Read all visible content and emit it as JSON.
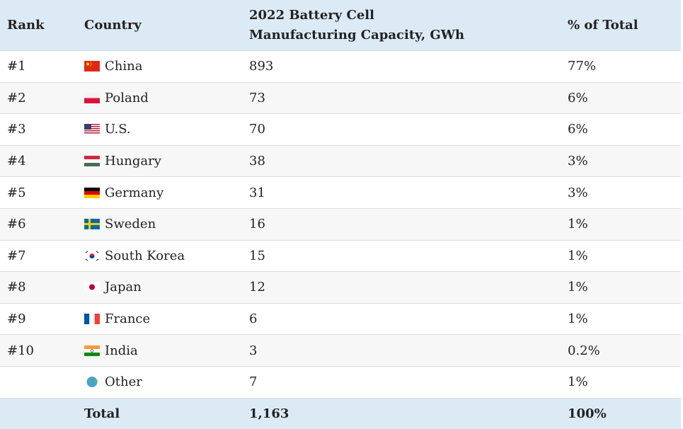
{
  "table": {
    "header": [
      "Rank",
      "Country",
      "2022 Battery Cell Manufacturing Capacity, GWh",
      "% of Total"
    ],
    "rows": [
      [
        "#1",
        "China",
        "893",
        "77%"
      ],
      [
        "#2",
        "Poland",
        "73",
        "6%"
      ],
      [
        "#3",
        "U.S.",
        "70",
        "6%"
      ],
      [
        "#4",
        "Hungary",
        "38",
        "3%"
      ],
      [
        "#5",
        "Germany",
        "31",
        "3%"
      ],
      [
        "#6",
        "Sweden",
        "16",
        "1%"
      ],
      [
        "#7",
        "South Korea",
        "15",
        "1%"
      ],
      [
        "#8",
        "Japan",
        "12",
        "1%"
      ],
      [
        "#9",
        "France",
        "6",
        "1%"
      ],
      [
        "#10",
        "India",
        "3",
        "0.2%"
      ],
      [
        null,
        "Other",
        "7",
        "1%"
      ]
    ],
    "total": [
      "Total",
      "1,163",
      "100%"
    ]
  }
}
